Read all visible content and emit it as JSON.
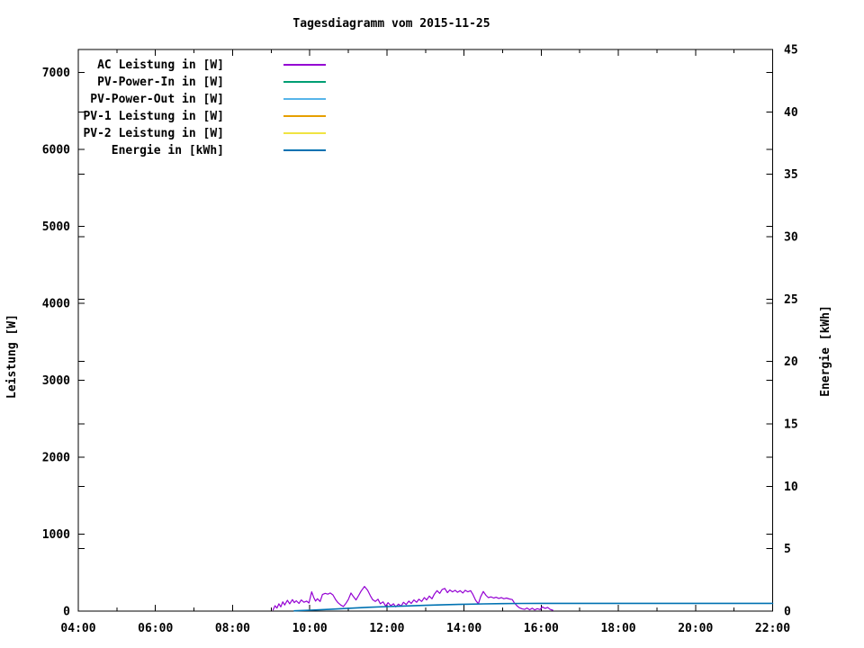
{
  "page": {
    "background": "#ffffff",
    "foreground": "#000000"
  },
  "chart_data": {
    "type": "line",
    "title": "Tagesdiagramm vom 2015-11-25",
    "grid": false,
    "legend_position": "top-left-inside",
    "x_axis": {
      "range_hours": [
        4,
        22
      ],
      "major_tick_hours": [
        4,
        6,
        8,
        10,
        12,
        14,
        16,
        18,
        20,
        22
      ],
      "major_tick_labels": [
        "04:00",
        "06:00",
        "08:00",
        "10:00",
        "12:00",
        "14:00",
        "16:00",
        "18:00",
        "20:00",
        "22:00"
      ],
      "minor_tick_hours": [
        5,
        7,
        9,
        11,
        13,
        15,
        17,
        19,
        21
      ]
    },
    "y_axis_left": {
      "label": "Leistung [W]",
      "range": [
        0,
        7300
      ],
      "tick_values": [
        0,
        1000,
        2000,
        3000,
        4000,
        5000,
        6000,
        7000
      ],
      "tick_labels": [
        "0",
        "1000",
        "2000",
        "3000",
        "4000",
        "5000",
        "6000",
        "7000"
      ]
    },
    "y_axis_right": {
      "label": "Energie [kWh]",
      "range": [
        0,
        45
      ],
      "tick_values": [
        0,
        5,
        10,
        15,
        20,
        25,
        30,
        35,
        40,
        45
      ],
      "tick_labels": [
        "0",
        "5",
        "10",
        "15",
        "20",
        "25",
        "30",
        "35",
        "40",
        "45"
      ]
    },
    "series": [
      {
        "name": "AC Leistung in [W]",
        "color": "#9400d3",
        "axis": "left",
        "width": 1.2,
        "points": [
          [
            9.05,
            15
          ],
          [
            9.1,
            70
          ],
          [
            9.15,
            40
          ],
          [
            9.2,
            95
          ],
          [
            9.25,
            55
          ],
          [
            9.3,
            120
          ],
          [
            9.35,
            80
          ],
          [
            9.42,
            140
          ],
          [
            9.48,
            95
          ],
          [
            9.55,
            150
          ],
          [
            9.6,
            110
          ],
          [
            9.65,
            135
          ],
          [
            9.72,
            100
          ],
          [
            9.78,
            145
          ],
          [
            9.85,
            115
          ],
          [
            9.92,
            130
          ],
          [
            9.98,
            105
          ],
          [
            10.05,
            250
          ],
          [
            10.1,
            180
          ],
          [
            10.15,
            130
          ],
          [
            10.2,
            160
          ],
          [
            10.27,
            125
          ],
          [
            10.33,
            215
          ],
          [
            10.4,
            230
          ],
          [
            10.47,
            220
          ],
          [
            10.53,
            235
          ],
          [
            10.6,
            210
          ],
          [
            10.67,
            150
          ],
          [
            10.73,
            110
          ],
          [
            10.8,
            80
          ],
          [
            10.87,
            60
          ],
          [
            10.93,
            95
          ],
          [
            11.0,
            150
          ],
          [
            11.07,
            235
          ],
          [
            11.13,
            190
          ],
          [
            11.2,
            145
          ],
          [
            11.27,
            205
          ],
          [
            11.33,
            260
          ],
          [
            11.42,
            320
          ],
          [
            11.5,
            270
          ],
          [
            11.57,
            200
          ],
          [
            11.63,
            150
          ],
          [
            11.7,
            125
          ],
          [
            11.77,
            155
          ],
          [
            11.83,
            95
          ],
          [
            11.9,
            120
          ],
          [
            11.97,
            65
          ],
          [
            12.03,
            110
          ],
          [
            12.1,
            70
          ],
          [
            12.17,
            95
          ],
          [
            12.23,
            55
          ],
          [
            12.3,
            90
          ],
          [
            12.37,
            65
          ],
          [
            12.43,
            115
          ],
          [
            12.5,
            85
          ],
          [
            12.57,
            130
          ],
          [
            12.63,
            100
          ],
          [
            12.7,
            145
          ],
          [
            12.77,
            115
          ],
          [
            12.83,
            155
          ],
          [
            12.9,
            125
          ],
          [
            12.97,
            175
          ],
          [
            13.03,
            145
          ],
          [
            13.1,
            195
          ],
          [
            13.17,
            160
          ],
          [
            13.23,
            220
          ],
          [
            13.3,
            265
          ],
          [
            13.37,
            230
          ],
          [
            13.43,
            280
          ],
          [
            13.5,
            295
          ],
          [
            13.57,
            240
          ],
          [
            13.63,
            275
          ],
          [
            13.7,
            250
          ],
          [
            13.77,
            270
          ],
          [
            13.83,
            245
          ],
          [
            13.9,
            265
          ],
          [
            13.97,
            235
          ],
          [
            14.03,
            270
          ],
          [
            14.1,
            250
          ],
          [
            14.17,
            265
          ],
          [
            14.23,
            215
          ],
          [
            14.3,
            140
          ],
          [
            14.37,
            95
          ],
          [
            14.43,
            185
          ],
          [
            14.5,
            255
          ],
          [
            14.57,
            205
          ],
          [
            14.63,
            175
          ],
          [
            14.7,
            185
          ],
          [
            14.77,
            170
          ],
          [
            14.83,
            180
          ],
          [
            14.9,
            165
          ],
          [
            14.97,
            175
          ],
          [
            15.03,
            160
          ],
          [
            15.1,
            170
          ],
          [
            15.17,
            158
          ],
          [
            15.25,
            150
          ],
          [
            15.3,
            110
          ],
          [
            15.37,
            70
          ],
          [
            15.43,
            45
          ],
          [
            15.5,
            30
          ],
          [
            15.57,
            22
          ],
          [
            15.63,
            40
          ],
          [
            15.7,
            18
          ],
          [
            15.77,
            38
          ],
          [
            15.83,
            15
          ],
          [
            15.9,
            32
          ],
          [
            15.97,
            20
          ],
          [
            16.03,
            55
          ],
          [
            16.1,
            35
          ],
          [
            16.17,
            48
          ],
          [
            16.23,
            22
          ],
          [
            16.3,
            12
          ]
        ]
      },
      {
        "name": "PV-Power-In in [W]",
        "color": "#009e73",
        "axis": "left",
        "width": 1.2,
        "points": []
      },
      {
        "name": "PV-Power-Out in [W]",
        "color": "#56b4e9",
        "axis": "left",
        "width": 1.2,
        "points": []
      },
      {
        "name": "PV-1 Leistung in [W]",
        "color": "#e69f00",
        "axis": "left",
        "width": 1.2,
        "points": []
      },
      {
        "name": "PV-2 Leistung in [W]",
        "color": "#f0e442",
        "axis": "left",
        "width": 1.2,
        "points": []
      },
      {
        "name": "Energie in [kWh]",
        "color": "#0072b2",
        "axis": "right",
        "width": 1.6,
        "points": [
          [
            9.6,
            0.02
          ],
          [
            10,
            0.07
          ],
          [
            10.5,
            0.14
          ],
          [
            11,
            0.22
          ],
          [
            11.5,
            0.3
          ],
          [
            12,
            0.36
          ],
          [
            12.5,
            0.41
          ],
          [
            13,
            0.46
          ],
          [
            13.5,
            0.51
          ],
          [
            14,
            0.55
          ],
          [
            14.5,
            0.58
          ],
          [
            15,
            0.6
          ],
          [
            15.5,
            0.61
          ],
          [
            16,
            0.62
          ],
          [
            17,
            0.62
          ],
          [
            18,
            0.62
          ],
          [
            19,
            0.62
          ],
          [
            20,
            0.62
          ],
          [
            21,
            0.62
          ],
          [
            22,
            0.62
          ]
        ]
      }
    ]
  }
}
